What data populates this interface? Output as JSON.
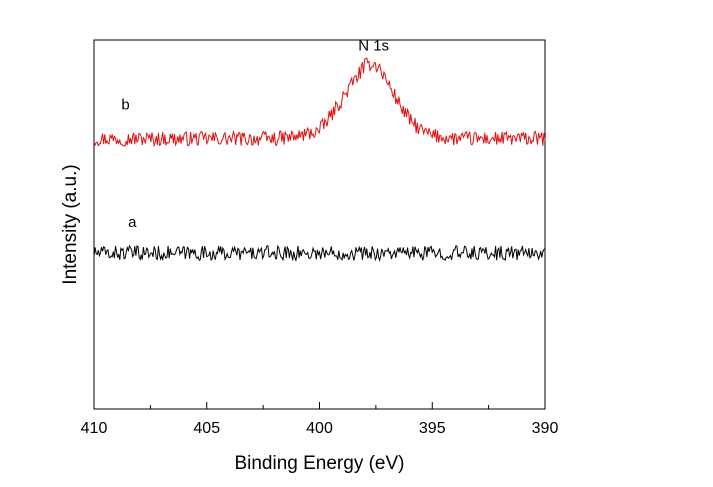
{
  "chart_data": {
    "type": "line",
    "title": "",
    "xlabel": "Binding Energy (eV)",
    "ylabel": "Intensity (a.u.)",
    "xlim": [
      410,
      390
    ],
    "x_reversed": true,
    "x_ticks": [
      410,
      405,
      400,
      395,
      390
    ],
    "x_tick_labels": [
      "410",
      "405",
      "400",
      "395",
      "390"
    ],
    "y_tick_labels": false,
    "grid": false,
    "legend": "none",
    "series": [
      {
        "name": "b",
        "color": "#e01010",
        "noise_amplitude": 0.07,
        "points": [
          [
            410,
            0.0
          ],
          [
            403,
            0.0
          ],
          [
            402,
            0.0
          ],
          [
            401,
            0.02
          ],
          [
            400,
            0.08
          ],
          [
            399.5,
            0.22
          ],
          [
            399,
            0.38
          ],
          [
            398.5,
            0.55
          ],
          [
            398,
            0.7
          ],
          [
            397.7,
            0.73
          ],
          [
            397.4,
            0.7
          ],
          [
            397,
            0.55
          ],
          [
            396.5,
            0.35
          ],
          [
            396,
            0.18
          ],
          [
            395.5,
            0.08
          ],
          [
            395,
            0.03
          ],
          [
            394,
            0.0
          ],
          [
            390,
            0.0
          ]
        ]
      },
      {
        "name": "a",
        "color": "#000000",
        "noise_amplitude": 0.07,
        "points": [
          [
            410,
            -1.1
          ],
          [
            390,
            -1.1
          ]
        ]
      }
    ],
    "annotations": [
      {
        "text": "N 1s",
        "x": 397.6,
        "y": 0.85
      },
      {
        "text": "b",
        "x": 408.6,
        "y": 0.28
      },
      {
        "text": "a",
        "x": 408.3,
        "y": -0.85
      }
    ]
  }
}
